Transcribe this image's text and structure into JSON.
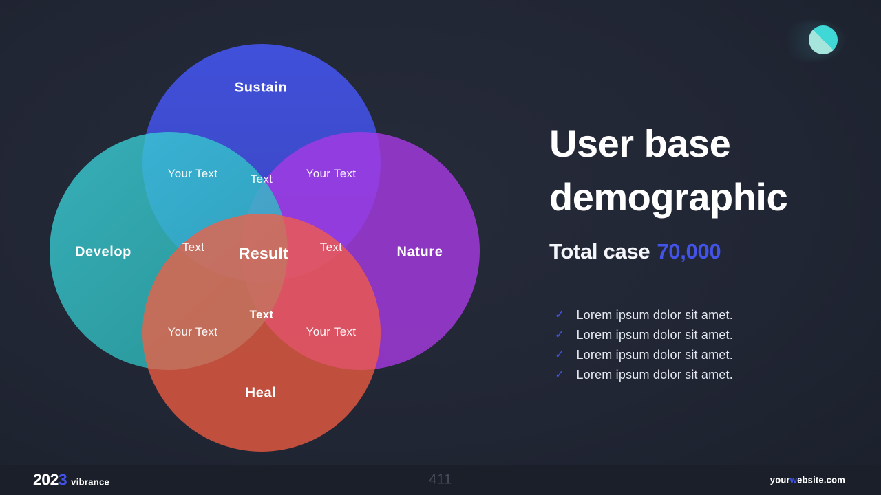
{
  "slide": {
    "bg": "#212634",
    "accent": "#4353e8"
  },
  "logo": {
    "fill": "linear-gradient(225deg, #3fd8d6 0%, #3fd8d6 50%, #a5e5db 50%, #a5e5db 100%)"
  },
  "venn": {
    "circles": [
      {
        "label": "Sustain",
        "fill": "linear-gradient(180deg, #4150da 0%, #3a46c0 100%)",
        "approx_color": "#3e4bcb"
      },
      {
        "label": "Develop",
        "fill": "linear-gradient(315deg, rgba(44,186,186,0.78) 20%, rgba(58,207,214,0.78) 85%)",
        "approx_color": "#2ea1a5"
      },
      {
        "label": "Nature",
        "fill": "rgba(168,57,228,0.80)",
        "approx_color": "#8d35c1"
      },
      {
        "label": "Heal",
        "fill": "rgba(245,94,65,0.75)",
        "approx_color": "#c0503e"
      }
    ],
    "labels": [
      {
        "text": "Your Text"
      },
      {
        "text": "Text"
      },
      {
        "text": "Your Text"
      },
      {
        "text": "Text"
      },
      {
        "text": "Result"
      },
      {
        "text": "Text"
      },
      {
        "text": "Text"
      },
      {
        "text": "Your Text"
      },
      {
        "text": "Your Text"
      }
    ]
  },
  "content": {
    "title_lines": [
      "User base",
      "demographic"
    ],
    "total_label": "Total case",
    "total_value": "70,000",
    "check_glyph": "✓",
    "bullets": [
      "Lorem ipsum dolor sit amet.",
      "Lorem ipsum dolor sit amet.",
      "Lorem ipsum dolor sit amet.",
      "Lorem ipsum dolor sit amet."
    ]
  },
  "footer": {
    "year_prefix": "202",
    "year_accent": "3",
    "brand": "vibrance",
    "page_number": "411",
    "site_pre": "your",
    "site_accent": "w",
    "site_post": "ebsite.com"
  }
}
